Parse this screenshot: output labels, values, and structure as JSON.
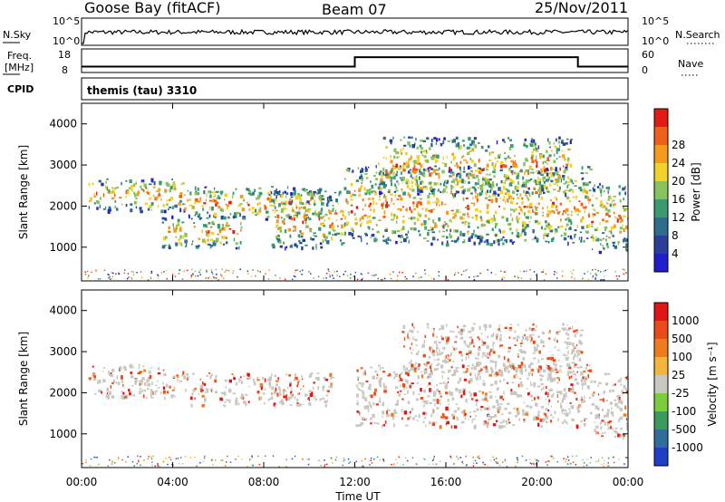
{
  "header": {
    "station": "Goose Bay (fitACF)",
    "beam": "Beam 07",
    "date": "25/Nov/2011"
  },
  "noise_panel": {
    "left_label": "N.Sky",
    "left_ticks": [
      "10^5",
      "10^0"
    ],
    "right_label": "N.Search",
    "right_ticks": [
      "10^5",
      "10^0"
    ]
  },
  "freq_panel": {
    "left_label_1": "Freq.",
    "left_label_2": "[MHz]",
    "left_ticks": [
      "18",
      "8"
    ],
    "right_label": "Nave",
    "right_ticks": [
      "60",
      "0"
    ]
  },
  "cpid_panel": {
    "label": "CPID",
    "text": "themis (tau) 3310"
  },
  "axes": {
    "ylabel": "Slant Range [km]",
    "xlabel": "Time UT",
    "x_ticks": [
      "00:00",
      "04:00",
      "08:00",
      "12:00",
      "16:00",
      "20:00",
      "00:00"
    ],
    "y_ticks": [
      "1000",
      "2000",
      "3000",
      "4000"
    ]
  },
  "power_colorbar": {
    "label": "Power [dB]",
    "ticks": [
      "4",
      "8",
      "12",
      "16",
      "20",
      "24",
      "28"
    ],
    "colors": [
      "#1e1ecc",
      "#2b3f9a",
      "#2e6e8c",
      "#3c9a70",
      "#87c25a",
      "#f2d12a",
      "#f49a1c",
      "#f06018",
      "#e21b14"
    ]
  },
  "velocity_colorbar": {
    "label": "Velocity [m s⁻¹]",
    "ticks": [
      "1000",
      "500",
      "100",
      "25",
      "-25",
      "-100",
      "-500",
      "-1000"
    ],
    "colors": [
      "#1f3fc4",
      "#2f6e9c",
      "#3c9a5a",
      "#7ccd3c",
      "#c8c8c0",
      "#f5b43a",
      "#ef7b1d",
      "#ec4a18",
      "#e01515"
    ]
  },
  "chart_data": {
    "type": "heatmap",
    "x_range_hours": [
      0,
      24
    ],
    "y_range_km": [
      180,
      4500
    ],
    "freq_mhz": [
      {
        "t": 0,
        "v": 10.5
      },
      {
        "t": 12,
        "v": 10.5
      },
      {
        "t": 12,
        "v": 14.5
      },
      {
        "t": 21.8,
        "v": 14.5
      },
      {
        "t": 21.8,
        "v": 10.5
      },
      {
        "t": 24,
        "v": 10.5
      }
    ],
    "power_echo_bands": [
      {
        "t0": 0.3,
        "t1": 4.5,
        "r0": 1900,
        "r1": 2700
      },
      {
        "t0": 4.5,
        "t1": 10.5,
        "r0": 1700,
        "r1": 2500
      },
      {
        "t0": 3.5,
        "t1": 7.0,
        "r0": 1000,
        "r1": 1800
      },
      {
        "t0": 8.3,
        "t1": 11.5,
        "r0": 1000,
        "r1": 2400
      },
      {
        "t0": 11.5,
        "t1": 22.3,
        "r0": 1100,
        "r1": 3000
      },
      {
        "t0": 13.0,
        "t1": 21.5,
        "r0": 2300,
        "r1": 3700
      },
      {
        "t0": 22.3,
        "t1": 24,
        "r0": 900,
        "r1": 2600
      }
    ],
    "velocity_echo_bands": [
      {
        "t0": 0.3,
        "t1": 4.5,
        "r0": 1900,
        "r1": 2700
      },
      {
        "t0": 4.5,
        "t1": 11.0,
        "r0": 1700,
        "r1": 2500
      },
      {
        "t0": 12.0,
        "t1": 22.3,
        "r0": 1200,
        "r1": 2700
      },
      {
        "t0": 14.0,
        "t1": 22.0,
        "r0": 2500,
        "r1": 3700
      },
      {
        "t0": 22.3,
        "t1": 24,
        "r0": 900,
        "r1": 2500
      }
    ]
  }
}
